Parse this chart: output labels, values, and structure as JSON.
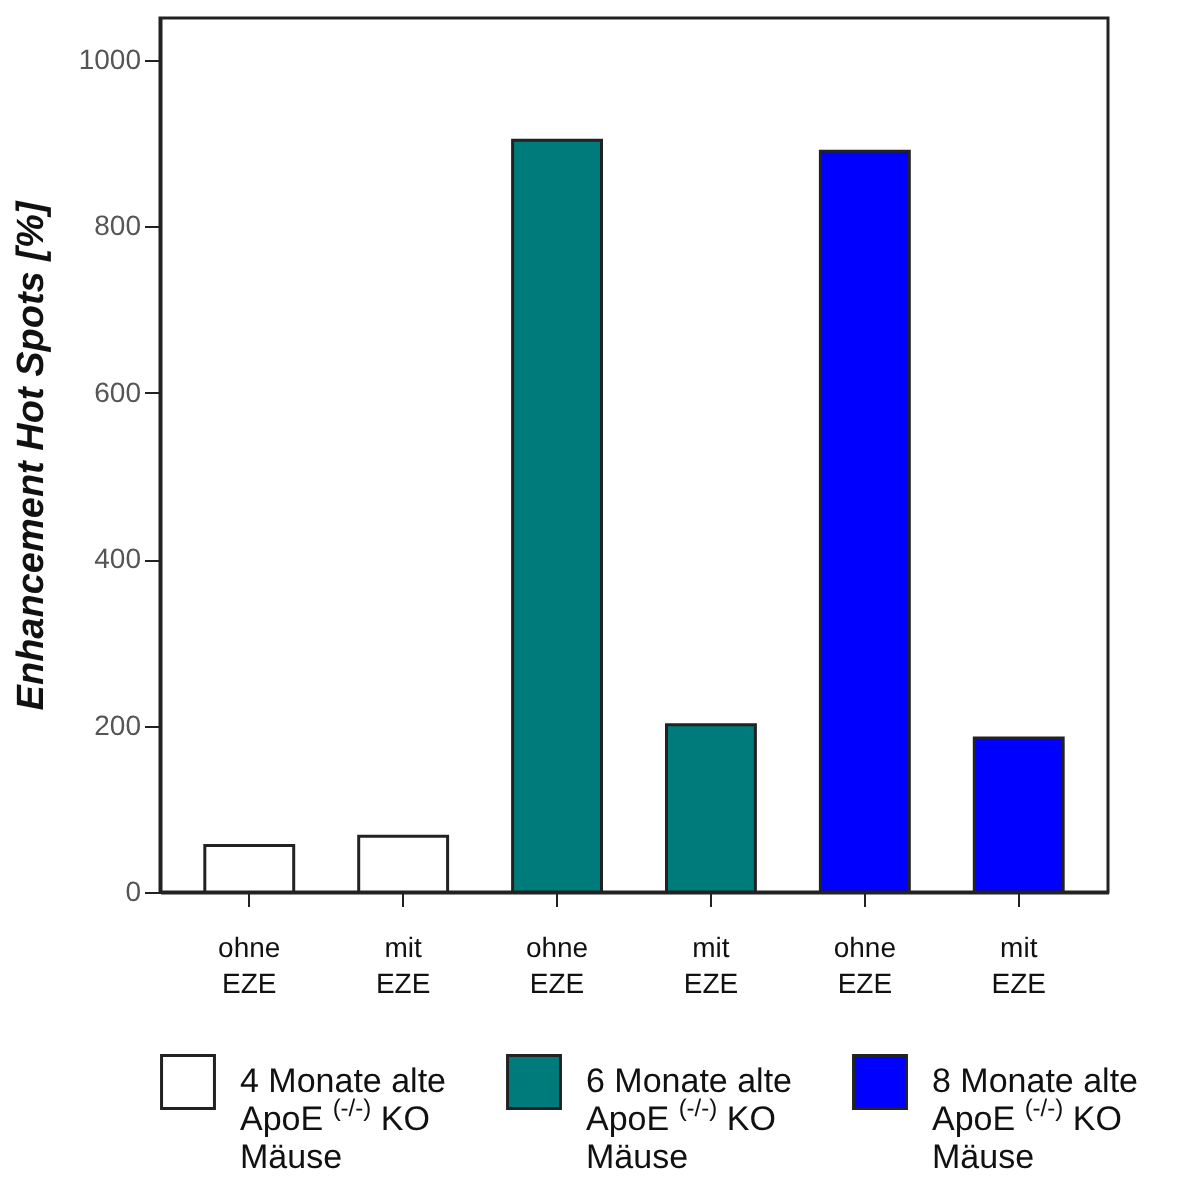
{
  "chart_data": {
    "type": "bar",
    "ylabel": "Enhancement Hot Spots [%]",
    "categories": [
      "ohne EZE",
      "mit EZE",
      "ohne EZE",
      "mit EZE",
      "ohne EZE",
      "mit EZE"
    ],
    "series": [
      {
        "name": "4 Monate alte ApoE $^{(-/-)}$ KO Mäuse",
        "color": "#ffffff",
        "values": [
          56,
          67,
          null,
          null,
          null,
          null
        ]
      },
      {
        "name": "6 Monate alte ApoE $^{(-/-)}$ KO Mäuse",
        "color": "#007b7b",
        "values": [
          null,
          null,
          903,
          201,
          null,
          null
        ]
      },
      {
        "name": "8 Monate alte ApoE $^{(-/-)}$ KO Mäuse",
        "color": "#0000ff",
        "values": [
          null,
          null,
          null,
          null,
          890,
          185
        ]
      }
    ],
    "ylim": [
      0,
      1050
    ],
    "yticks": [
      0,
      200,
      400,
      600,
      800,
      1000
    ],
    "grid": false,
    "legend": "bottom"
  }
}
